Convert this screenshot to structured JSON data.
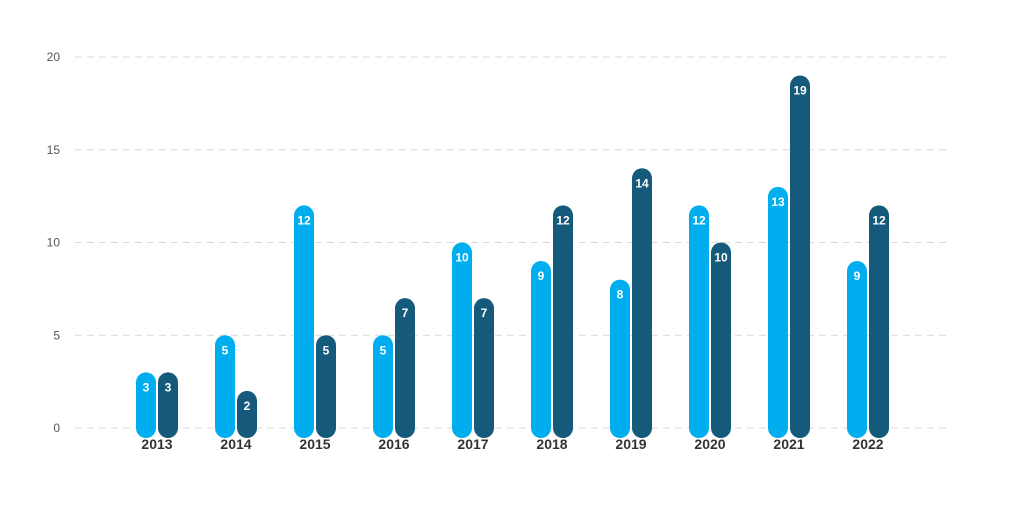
{
  "chart_data": {
    "type": "bar",
    "categories": [
      "2013",
      "2014",
      "2015",
      "2016",
      "2017",
      "2018",
      "2019",
      "2020",
      "2021",
      "2022"
    ],
    "series": [
      {
        "values": [
          3,
          5,
          12,
          5,
          10,
          9,
          8,
          12,
          13,
          9
        ],
        "color": "#00aeef"
      },
      {
        "values": [
          3,
          2,
          5,
          7,
          7,
          12,
          14,
          10,
          19,
          12
        ],
        "color": "#155a7a"
      }
    ],
    "ylim": [
      0,
      20
    ],
    "yticks": [
      0,
      5,
      10,
      15,
      20
    ],
    "grid": true,
    "data_labels": true,
    "title": "",
    "xlabel": "",
    "ylabel": ""
  }
}
